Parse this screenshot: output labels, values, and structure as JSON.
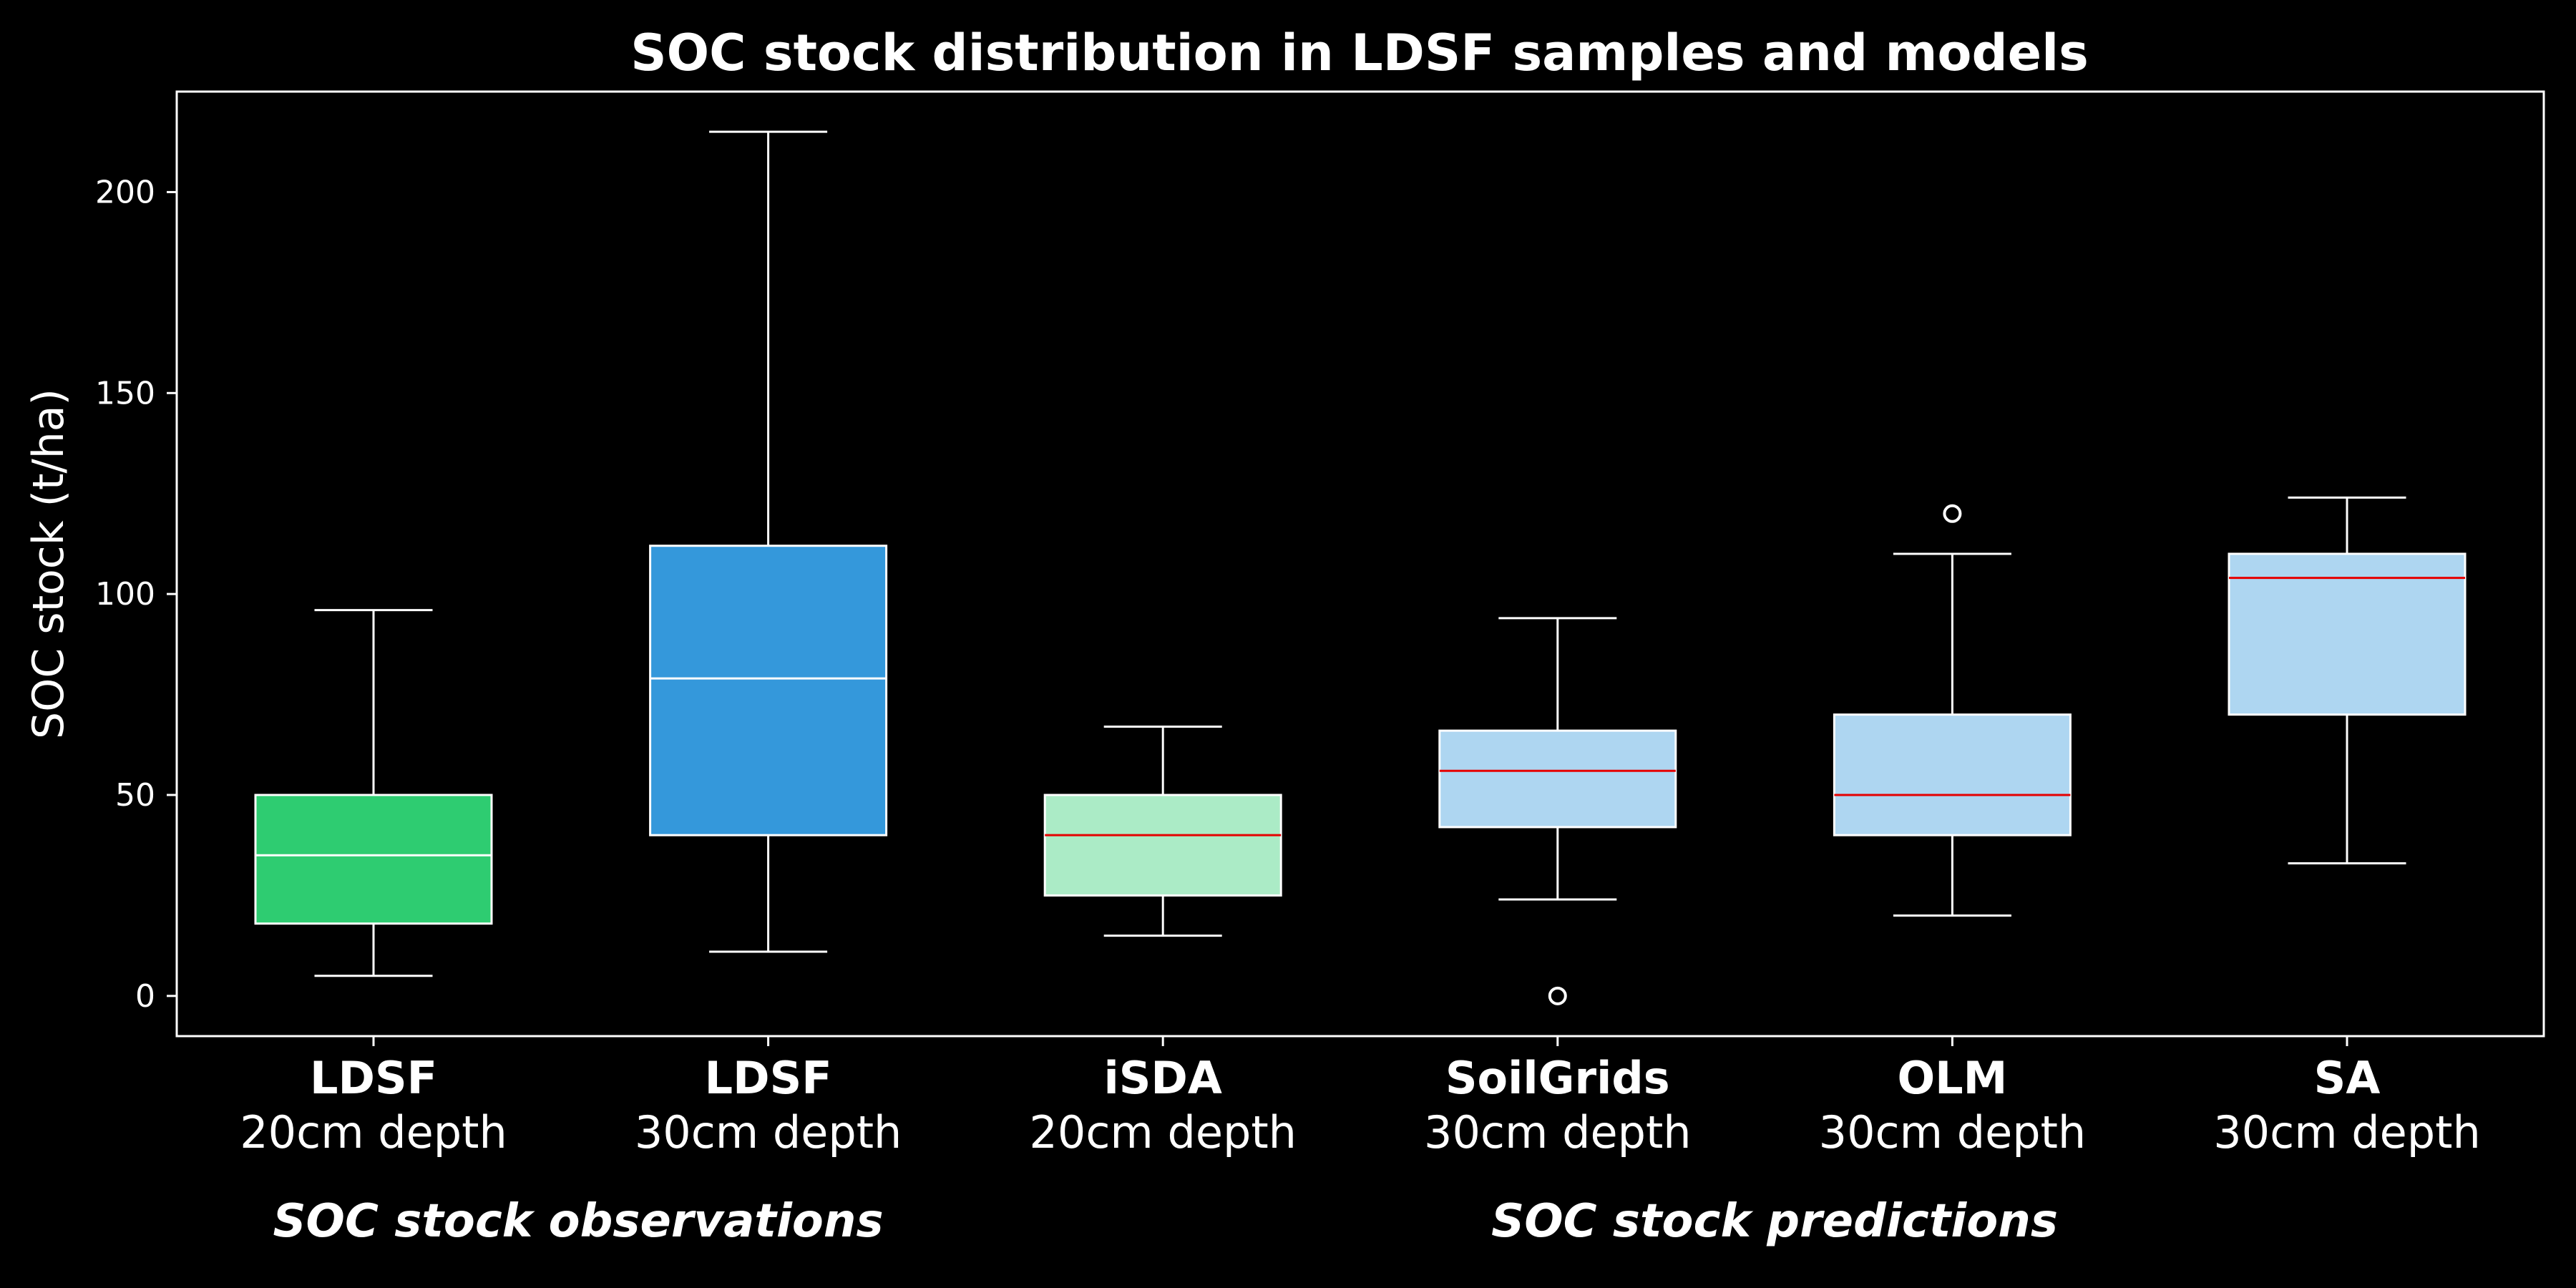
{
  "chart_data": {
    "type": "box",
    "title": "SOC stock distribution in LDSF samples and models",
    "ylabel": "SOC stock (t/ha)",
    "ylim": [
      -10,
      225
    ],
    "yticks": [
      "0",
      "50",
      "100",
      "150",
      "200"
    ],
    "grid": false,
    "categories": [
      {
        "name": "LDSF",
        "sub": "20cm depth",
        "min": 5,
        "q1": 18,
        "median": 35,
        "q3": 50,
        "max": 96,
        "outliers": [],
        "color": "#2ecc71",
        "median_color": "#ffffff"
      },
      {
        "name": "LDSF",
        "sub": "30cm depth",
        "min": 11,
        "q1": 40,
        "median": 79,
        "q3": 112,
        "max": 215,
        "outliers": [],
        "color": "#3498db",
        "median_color": "#ffffff"
      },
      {
        "name": "iSDA",
        "sub": "20cm depth",
        "min": 15,
        "q1": 25,
        "median": 40,
        "q3": 50,
        "max": 67,
        "outliers": [],
        "color": "#abebc6",
        "median_color": "#e60000"
      },
      {
        "name": "SoilGrids",
        "sub": "30cm depth",
        "min": 24,
        "q1": 42,
        "median": 56,
        "q3": 66,
        "max": 94,
        "outliers": [
          0
        ],
        "color": "#aed6f1",
        "median_color": "#e60000"
      },
      {
        "name": "OLM",
        "sub": "30cm depth",
        "min": 20,
        "q1": 40,
        "median": 50,
        "q3": 70,
        "max": 110,
        "outliers": [
          120
        ],
        "color": "#aed6f1",
        "median_color": "#e60000"
      },
      {
        "name": "SA",
        "sub": "30cm depth",
        "min": 33,
        "q1": 70,
        "median": 104,
        "q3": 110,
        "max": 124,
        "outliers": [],
        "color": "#aed6f1",
        "median_color": "#e60000"
      }
    ],
    "groups": [
      {
        "label": "SOC stock observations"
      },
      {
        "label": "SOC stock predictions"
      }
    ]
  }
}
